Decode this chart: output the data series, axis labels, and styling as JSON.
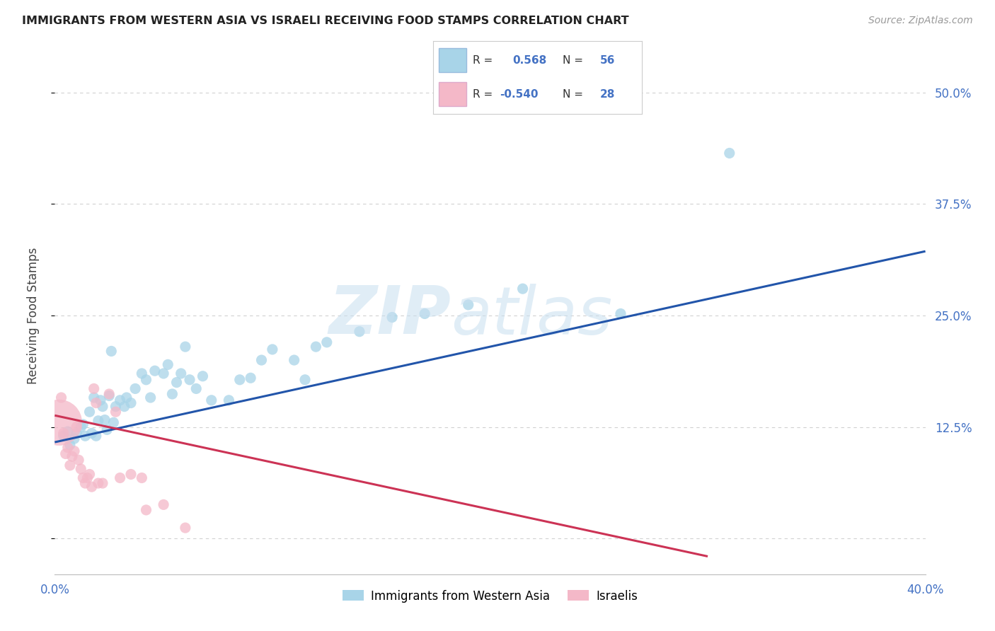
{
  "title": "IMMIGRANTS FROM WESTERN ASIA VS ISRAELI RECEIVING FOOD STAMPS CORRELATION CHART",
  "source": "Source: ZipAtlas.com",
  "ylabel": "Receiving Food Stamps",
  "xlim": [
    0.0,
    0.4
  ],
  "ylim": [
    -0.04,
    0.54
  ],
  "ytick_vals": [
    0.0,
    0.125,
    0.25,
    0.375,
    0.5
  ],
  "ytick_labels": [
    "",
    "12.5%",
    "25.0%",
    "37.5%",
    "50.0%"
  ],
  "xtick_vals": [
    0.0,
    0.1,
    0.2,
    0.3,
    0.4
  ],
  "xtick_labels": [
    "0.0%",
    "",
    "",
    "",
    "40.0%"
  ],
  "grid_color": "#cccccc",
  "background_color": "#ffffff",
  "blue_color": "#a8d4e8",
  "pink_color": "#f4b8c8",
  "blue_line_color": "#2255aa",
  "pink_line_color": "#cc3355",
  "blue_scatter": [
    [
      0.004,
      0.115
    ],
    [
      0.006,
      0.12
    ],
    [
      0.007,
      0.105
    ],
    [
      0.009,
      0.112
    ],
    [
      0.01,
      0.118
    ],
    [
      0.012,
      0.125
    ],
    [
      0.013,
      0.128
    ],
    [
      0.014,
      0.115
    ],
    [
      0.016,
      0.142
    ],
    [
      0.017,
      0.118
    ],
    [
      0.018,
      0.158
    ],
    [
      0.019,
      0.115
    ],
    [
      0.02,
      0.132
    ],
    [
      0.021,
      0.155
    ],
    [
      0.022,
      0.148
    ],
    [
      0.023,
      0.133
    ],
    [
      0.024,
      0.122
    ],
    [
      0.025,
      0.16
    ],
    [
      0.026,
      0.21
    ],
    [
      0.027,
      0.13
    ],
    [
      0.028,
      0.148
    ],
    [
      0.03,
      0.155
    ],
    [
      0.032,
      0.148
    ],
    [
      0.033,
      0.158
    ],
    [
      0.035,
      0.152
    ],
    [
      0.037,
      0.168
    ],
    [
      0.04,
      0.185
    ],
    [
      0.042,
      0.178
    ],
    [
      0.044,
      0.158
    ],
    [
      0.046,
      0.188
    ],
    [
      0.05,
      0.185
    ],
    [
      0.052,
      0.195
    ],
    [
      0.054,
      0.162
    ],
    [
      0.056,
      0.175
    ],
    [
      0.058,
      0.185
    ],
    [
      0.06,
      0.215
    ],
    [
      0.062,
      0.178
    ],
    [
      0.065,
      0.168
    ],
    [
      0.068,
      0.182
    ],
    [
      0.072,
      0.155
    ],
    [
      0.08,
      0.155
    ],
    [
      0.085,
      0.178
    ],
    [
      0.09,
      0.18
    ],
    [
      0.095,
      0.2
    ],
    [
      0.1,
      0.212
    ],
    [
      0.11,
      0.2
    ],
    [
      0.115,
      0.178
    ],
    [
      0.12,
      0.215
    ],
    [
      0.125,
      0.22
    ],
    [
      0.14,
      0.232
    ],
    [
      0.155,
      0.248
    ],
    [
      0.17,
      0.252
    ],
    [
      0.19,
      0.262
    ],
    [
      0.215,
      0.28
    ],
    [
      0.26,
      0.252
    ],
    [
      0.31,
      0.432
    ]
  ],
  "pink_scatter": [
    [
      0.002,
      0.13
    ],
    [
      0.003,
      0.158
    ],
    [
      0.004,
      0.118
    ],
    [
      0.005,
      0.095
    ],
    [
      0.006,
      0.102
    ],
    [
      0.007,
      0.082
    ],
    [
      0.008,
      0.092
    ],
    [
      0.009,
      0.098
    ],
    [
      0.01,
      0.125
    ],
    [
      0.011,
      0.088
    ],
    [
      0.012,
      0.078
    ],
    [
      0.013,
      0.068
    ],
    [
      0.014,
      0.062
    ],
    [
      0.015,
      0.068
    ],
    [
      0.016,
      0.072
    ],
    [
      0.017,
      0.058
    ],
    [
      0.018,
      0.168
    ],
    [
      0.019,
      0.152
    ],
    [
      0.02,
      0.062
    ],
    [
      0.022,
      0.062
    ],
    [
      0.025,
      0.162
    ],
    [
      0.028,
      0.142
    ],
    [
      0.03,
      0.068
    ],
    [
      0.035,
      0.072
    ],
    [
      0.04,
      0.068
    ],
    [
      0.042,
      0.032
    ],
    [
      0.05,
      0.038
    ],
    [
      0.06,
      0.012
    ]
  ],
  "pink_large_idx": 0,
  "pink_large_size": 2200,
  "blue_dot_size": 120,
  "pink_dot_size": 120,
  "blue_line_x": [
    0.0,
    0.4
  ],
  "blue_line_y": [
    0.108,
    0.322
  ],
  "pink_line_x": [
    0.0,
    0.3
  ],
  "pink_line_y": [
    0.138,
    -0.02
  ],
  "legend_label1": "Immigrants from Western Asia",
  "legend_label2": "Israelis",
  "legend_r1_label": "R =",
  "legend_r1_val": "0.568",
  "legend_r1_n_label": "N =",
  "legend_r1_n_val": "56",
  "legend_r2_label": "R = -0.540",
  "legend_r2_val": "-0.540",
  "legend_r2_n_label": "N =",
  "legend_r2_n_val": "28"
}
